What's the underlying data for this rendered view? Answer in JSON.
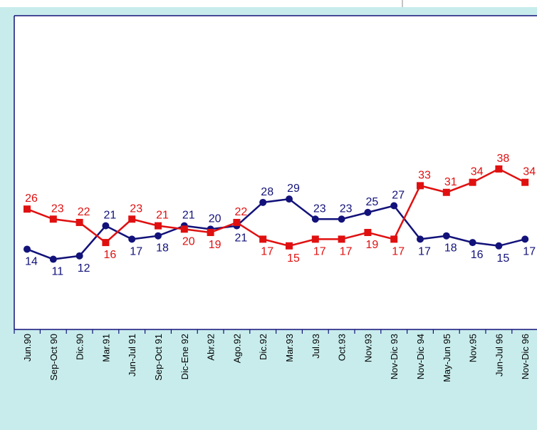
{
  "chart_data": {
    "type": "line",
    "categories": [
      "Jun.90",
      "Sep-Oct 90",
      "Dic.90",
      "Mar.91",
      "Jun-Jul 91",
      "Sep-Oct 91",
      "Dic-Ene 92",
      "Abr.92",
      "Ago.92",
      "Dic.92",
      "Mar.93",
      "Jul.93",
      "Oct.93",
      "Nov.93",
      "Nov-Dic 93",
      "Nov-Dic 94",
      "May-Jun 95",
      "Nov.95",
      "Jun-Jul 96",
      "Nov-Dic 96"
    ],
    "series": [
      {
        "color": "#12127a",
        "marker": "circle",
        "values": [
          14,
          11,
          12,
          21,
          17,
          18,
          21,
          20,
          21,
          28,
          29,
          23,
          23,
          25,
          27,
          17,
          18,
          16,
          15,
          17
        ]
      },
      {
        "color": "#e01010",
        "marker": "square",
        "values": [
          26,
          23,
          22,
          16,
          23,
          21,
          20,
          19,
          22,
          17,
          15,
          17,
          17,
          19,
          17,
          33,
          31,
          34,
          38,
          34
        ]
      }
    ],
    "ylim": [
      -10,
      80
    ]
  }
}
